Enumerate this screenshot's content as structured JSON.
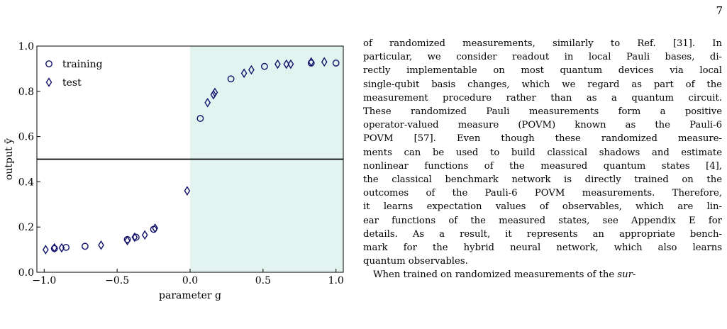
{
  "page": {
    "number": "7"
  },
  "figure": {
    "chart_data": {
      "type": "scatter",
      "title": "",
      "xlabel": "parameter g",
      "ylabel": "output ȳ",
      "xlim": [
        -1.05,
        1.05
      ],
      "ylim": [
        0.0,
        1.0
      ],
      "xticks": [
        "−1.0",
        "−0.5",
        "0.0",
        "0.5",
        "1.0"
      ],
      "xtick_values": [
        -1.0,
        -0.5,
        0.0,
        0.5,
        1.0
      ],
      "yticks": [
        "0.0",
        "0.2",
        "0.4",
        "0.6",
        "0.8",
        "1.0"
      ],
      "ytick_values": [
        0.0,
        0.2,
        0.4,
        0.6,
        0.8,
        1.0
      ],
      "threshold_line": 0.5,
      "shaded_region": {
        "x_from": 0.0,
        "x_to": 1.05,
        "color": "#e3f4f0"
      },
      "legend_position": "top-left",
      "marker_color": "#10106b",
      "series": [
        {
          "name": "training",
          "marker": "circle",
          "points": [
            [
              -0.93,
              0.105
            ],
            [
              -0.85,
              0.11
            ],
            [
              -0.72,
              0.115
            ],
            [
              -0.43,
              0.145
            ],
            [
              -0.37,
              0.155
            ],
            [
              -0.25,
              0.19
            ],
            [
              0.07,
              0.68
            ],
            [
              0.28,
              0.855
            ],
            [
              0.51,
              0.91
            ],
            [
              0.83,
              0.925
            ],
            [
              1.0,
              0.925
            ]
          ]
        },
        {
          "name": "test",
          "marker": "diamond",
          "points": [
            [
              -0.99,
              0.1
            ],
            [
              -0.93,
              0.108
            ],
            [
              -0.88,
              0.108
            ],
            [
              -0.61,
              0.12
            ],
            [
              -0.43,
              0.14
            ],
            [
              -0.38,
              0.155
            ],
            [
              -0.31,
              0.165
            ],
            [
              -0.24,
              0.195
            ],
            [
              -0.02,
              0.36
            ],
            [
              0.12,
              0.75
            ],
            [
              0.16,
              0.785
            ],
            [
              0.17,
              0.795
            ],
            [
              0.37,
              0.88
            ],
            [
              0.42,
              0.895
            ],
            [
              0.6,
              0.92
            ],
            [
              0.66,
              0.92
            ],
            [
              0.69,
              0.92
            ],
            [
              0.83,
              0.93
            ],
            [
              0.92,
              0.93
            ]
          ]
        }
      ]
    }
  },
  "text": {
    "lines": [
      "of randomized measurements, similarly to Ref. [31]. In",
      "particular, we consider readout in local Pauli bases, di-",
      "rectly implementable on most quantum devices via local",
      "single-qubit basis changes, which we regard as part of the",
      "measurement procedure rather than as a quantum circuit.",
      "These randomized Pauli measurements form a positive",
      "operator-valued measure (POVM) known as the Pauli-6",
      "POVM [57]. Even though these randomized measure-",
      "ments can be used to build classical shadows and estimate",
      "nonlinear functions of the measured quantum states [4],",
      "the classical benchmark network is directly trained on the",
      "outcomes of the Pauli-6 POVM measurements. Therefore,",
      "it learns expectation values of observables, which are lin-",
      "ear functions of the measured states, see Appendix E for",
      "details. As a result, it represents an appropriate bench-",
      "mark for the hybrid neural network, which also learns",
      "quantum observables."
    ],
    "next_paragraph_start": "When trained on randomized measurements of the",
    "next_paragraph_italic": "sur-"
  }
}
